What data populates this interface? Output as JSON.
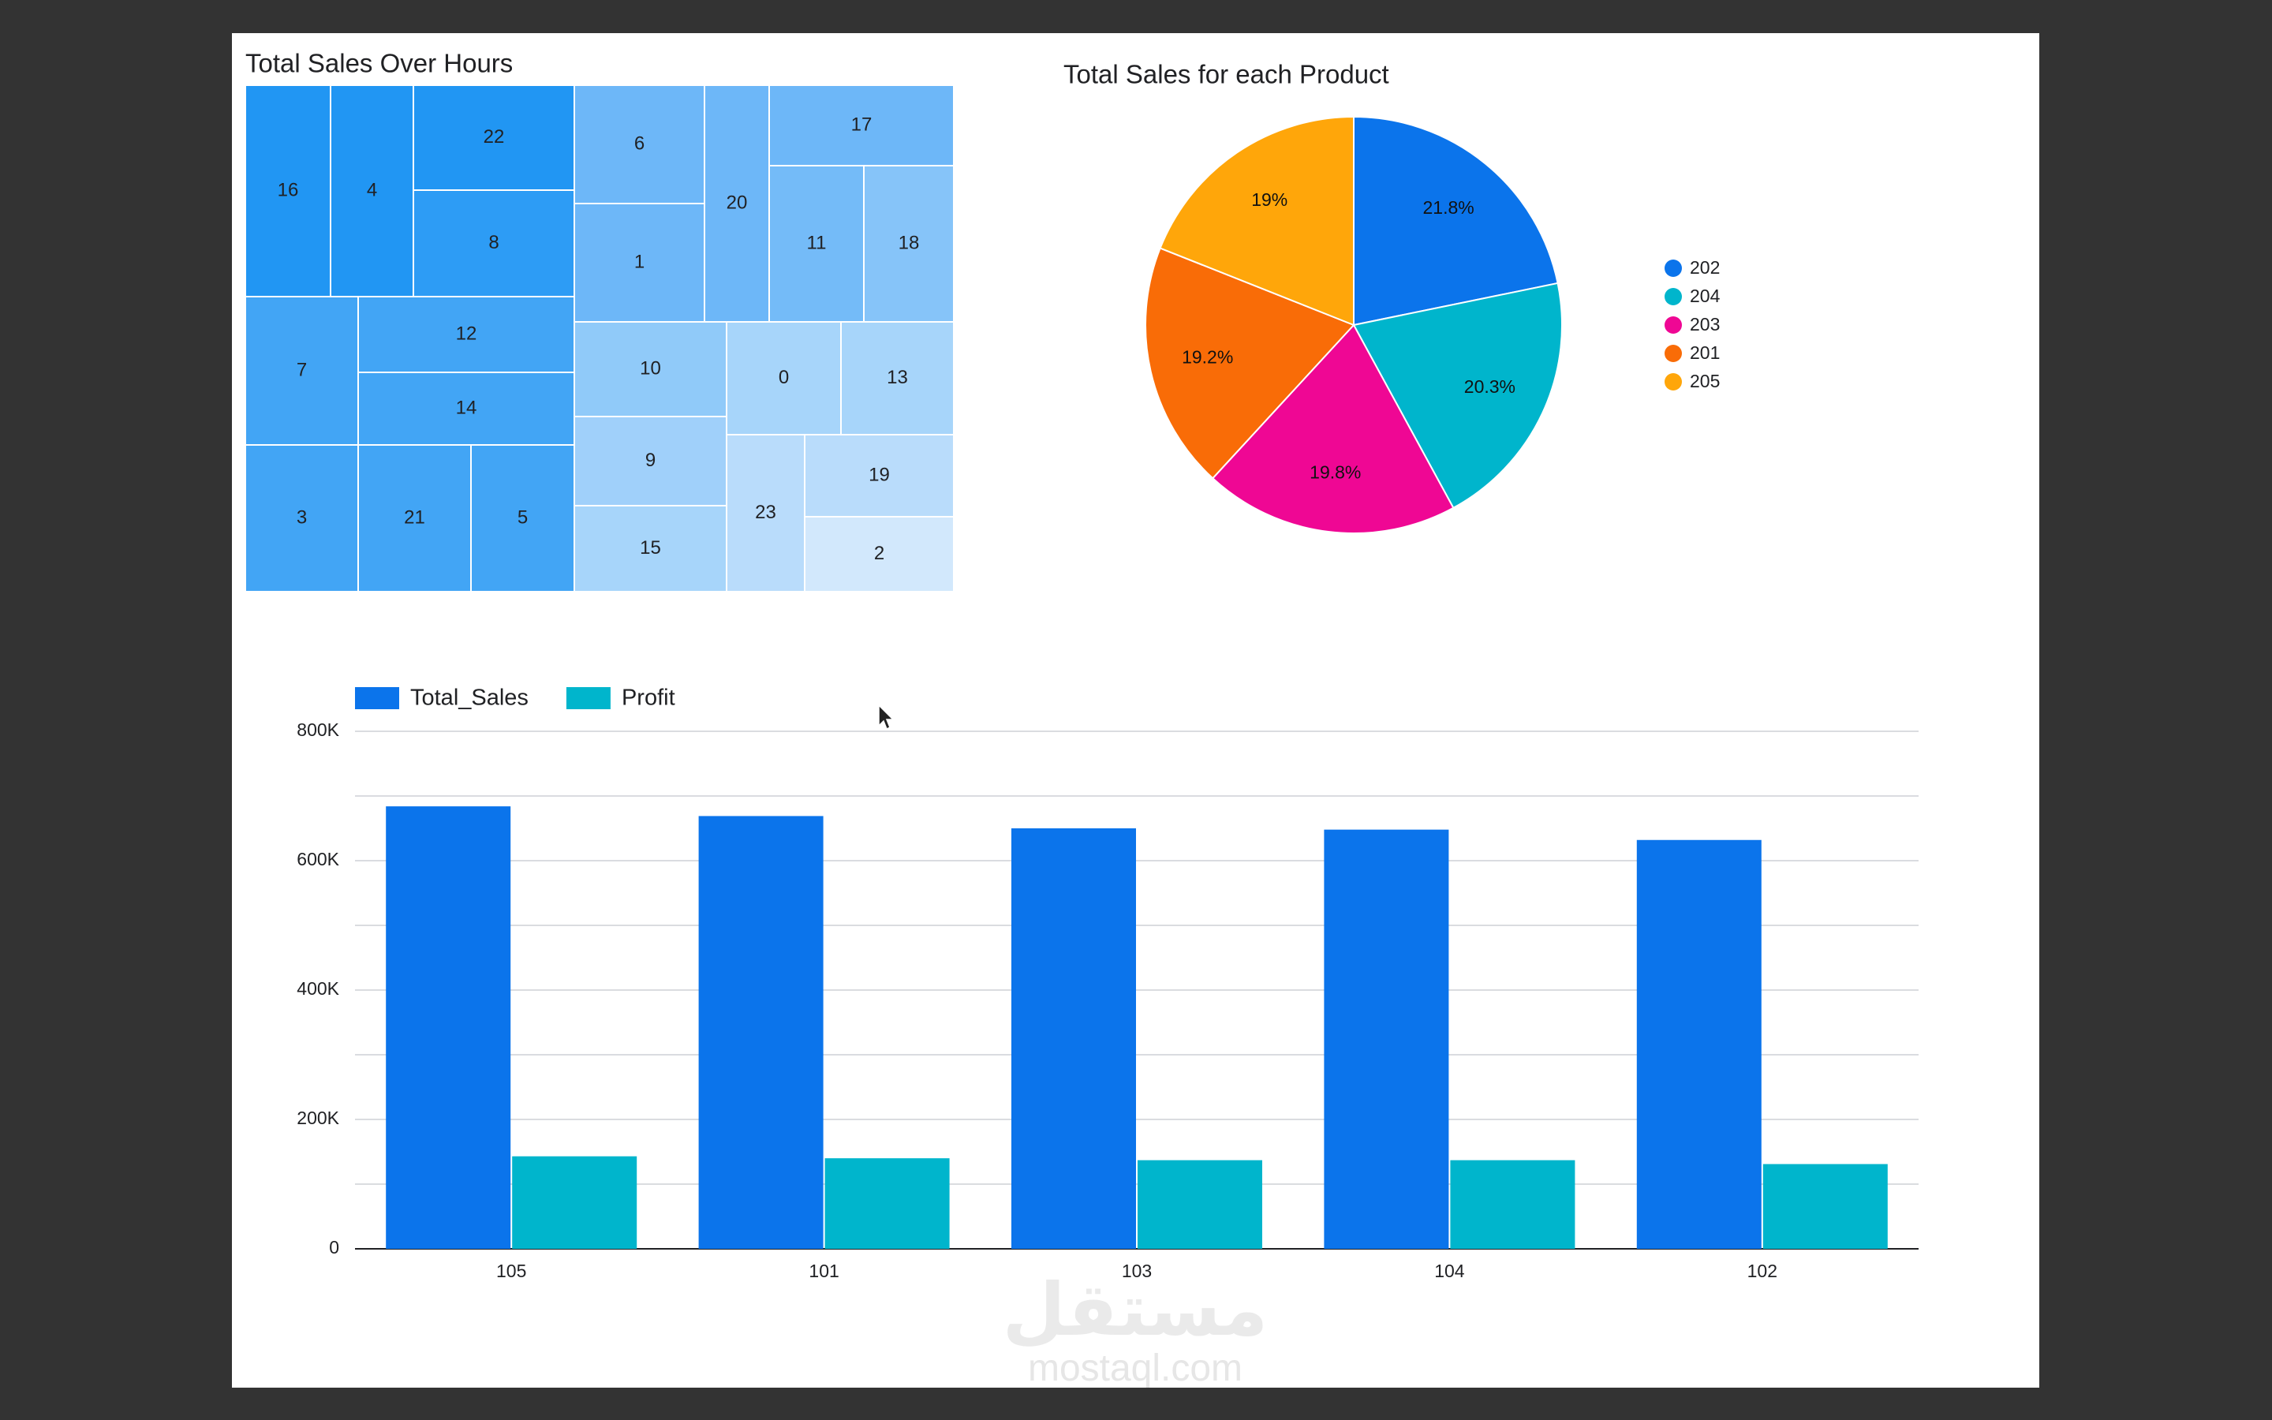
{
  "chart_data": [
    {
      "type": "treemap",
      "title": "Total Sales Over Hours",
      "cells": [
        {
          "label": "16",
          "color": "#2196f3"
        },
        {
          "label": "4",
          "color": "#2196f3"
        },
        {
          "label": "22",
          "color": "#2196f3"
        },
        {
          "label": "8",
          "color": "#2d9cf5"
        },
        {
          "label": "7",
          "color": "#42a5f5"
        },
        {
          "label": "12",
          "color": "#42a5f5"
        },
        {
          "label": "14",
          "color": "#42a5f5"
        },
        {
          "label": "3",
          "color": "#42a5f5"
        },
        {
          "label": "21",
          "color": "#42a5f5"
        },
        {
          "label": "5",
          "color": "#42a5f5"
        },
        {
          "label": "6",
          "color": "#6db7f8"
        },
        {
          "label": "20",
          "color": "#6db7f8"
        },
        {
          "label": "17",
          "color": "#6db7f8"
        },
        {
          "label": "1",
          "color": "#6db7f8"
        },
        {
          "label": "11",
          "color": "#74bbf8"
        },
        {
          "label": "18",
          "color": "#86c4f9"
        },
        {
          "label": "10",
          "color": "#90caf9"
        },
        {
          "label": "0",
          "color": "#a7d5fa"
        },
        {
          "label": "13",
          "color": "#a7d5fa"
        },
        {
          "label": "9",
          "color": "#a0d0fa"
        },
        {
          "label": "23",
          "color": "#b9dcfb"
        },
        {
          "label": "19",
          "color": "#b9dcfb"
        },
        {
          "label": "15",
          "color": "#a7d5fa"
        },
        {
          "label": "2",
          "color": "#d2e8fc"
        }
      ]
    },
    {
      "type": "pie",
      "title": "Total Sales for each Product",
      "slices": [
        {
          "name": "202",
          "percent": 21.8,
          "label": "21.8%",
          "color": "#0b74eb"
        },
        {
          "name": "204",
          "percent": 20.3,
          "label": "20.3%",
          "color": "#00b5cc"
        },
        {
          "name": "203",
          "percent": 19.8,
          "label": "19.8%",
          "color": "#ef0794"
        },
        {
          "name": "201",
          "percent": 19.2,
          "label": "19.2%",
          "color": "#f96c07"
        },
        {
          "name": "205",
          "percent": 19.0,
          "label": "19%",
          "color": "#ffa60a"
        }
      ],
      "legend_position": "right"
    },
    {
      "type": "bar",
      "categories": [
        "105",
        "101",
        "103",
        "104",
        "102"
      ],
      "series": [
        {
          "name": "Total_Sales",
          "color": "#0b74eb",
          "values": [
            684000,
            669000,
            650000,
            648000,
            632000
          ]
        },
        {
          "name": "Profit",
          "color": "#00b5cc",
          "values": [
            143000,
            140000,
            137000,
            137000,
            131000
          ]
        }
      ],
      "ylim": [
        0,
        800000
      ],
      "yticks": [
        {
          "value": 0,
          "label": "0"
        },
        {
          "value": 200000,
          "label": "200K"
        },
        {
          "value": 400000,
          "label": "400K"
        },
        {
          "value": 600000,
          "label": "600K"
        },
        {
          "value": 800000,
          "label": "800K"
        }
      ],
      "minor_gridlines": [
        100000,
        300000,
        500000,
        700000
      ],
      "legend_position": "top-left",
      "grid": true
    }
  ],
  "watermark": {
    "arabic": "مستقل",
    "latin": "mostaql.com"
  }
}
